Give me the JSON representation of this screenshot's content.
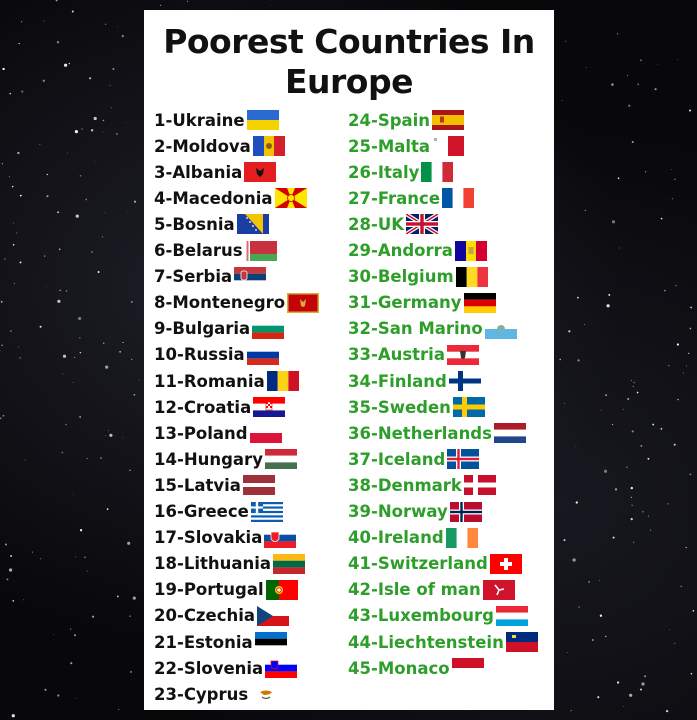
{
  "title": "Poorest Countries In Europe",
  "left_list": [
    {
      "rank": "1-",
      "name": "Ukraine",
      "flag": "ukraine-flag"
    },
    {
      "rank": "2-",
      "name": "Moldova",
      "flag": "moldova-flag"
    },
    {
      "rank": "3-",
      "name": "Albania",
      "flag": "albania-flag"
    },
    {
      "rank": "4-",
      "name": "Macedonia",
      "flag": "macedonia-flag"
    },
    {
      "rank": "5-",
      "name": "Bosnia",
      "flag": "bosnia-flag"
    },
    {
      "rank": "6-",
      "name": "Belarus",
      "flag": "belarus-flag"
    },
    {
      "rank": "7-",
      "name": "Serbia",
      "flag": "serbia-flag"
    },
    {
      "rank": "8-",
      "name": "Montenegro",
      "flag": "montenegro-flag"
    },
    {
      "rank": "9-",
      "name": "Bulgaria",
      "flag": "bulgaria-flag"
    },
    {
      "rank": "10-",
      "name": "Russia",
      "flag": "russia-flag"
    },
    {
      "rank": "11-",
      "name": "Romania",
      "flag": "romania-flag"
    },
    {
      "rank": "12-",
      "name": "Croatia",
      "flag": "croatia-flag"
    },
    {
      "rank": "13-",
      "name": "Poland",
      "flag": "poland-flag"
    },
    {
      "rank": "14-",
      "name": "Hungary",
      "flag": "hungary-flag"
    },
    {
      "rank": "15-",
      "name": "Latvia",
      "flag": "latvia-flag"
    },
    {
      "rank": "16-",
      "name": "Greece",
      "flag": "greece-flag"
    },
    {
      "rank": "17-",
      "name": "Slovakia",
      "flag": "slovakia-flag"
    },
    {
      "rank": "18-",
      "name": "Lithuania",
      "flag": "lithuania-flag"
    },
    {
      "rank": "19-",
      "name": "Portugal",
      "flag": "portugal-flag"
    },
    {
      "rank": "20-",
      "name": "Czechia",
      "flag": "czechia-flag"
    },
    {
      "rank": "21-",
      "name": "Estonia",
      "flag": "estonia-flag"
    },
    {
      "rank": "22-",
      "name": "Slovenia",
      "flag": "slovenia-flag"
    },
    {
      "rank": "23-",
      "name": "Cyprus",
      "flag": "cyprus-flag"
    }
  ],
  "right_list": [
    {
      "rank": "24-",
      "name": "Spain",
      "flag": "spain-flag"
    },
    {
      "rank": "25-",
      "name": "Malta",
      "flag": "malta-flag"
    },
    {
      "rank": "26-",
      "name": "Italy",
      "flag": "italy-flag"
    },
    {
      "rank": "27-",
      "name": "France",
      "flag": "france-flag"
    },
    {
      "rank": "28-",
      "name": "UK",
      "flag": "uk-flag"
    },
    {
      "rank": "29-",
      "name": "Andorra",
      "flag": "andorra-flag"
    },
    {
      "rank": "30-",
      "name": "Belgium",
      "flag": "belgium-flag"
    },
    {
      "rank": "31-",
      "name": "Germany",
      "flag": "germany-flag"
    },
    {
      "rank": "32-",
      "name": "San Marino",
      "flag": "san-marino-flag"
    },
    {
      "rank": "33-",
      "name": "Austria",
      "flag": "austria-flag"
    },
    {
      "rank": "34-",
      "name": "Finland",
      "flag": "finland-flag"
    },
    {
      "rank": "35-",
      "name": "Sweden",
      "flag": "sweden-flag"
    },
    {
      "rank": "36-",
      "name": "Netherlands",
      "flag": "netherlands-flag"
    },
    {
      "rank": "37-",
      "name": "Iceland",
      "flag": "iceland-flag"
    },
    {
      "rank": "38-",
      "name": "Denmark",
      "flag": "denmark-flag"
    },
    {
      "rank": "39-",
      "name": "Norway",
      "flag": "norway-flag"
    },
    {
      "rank": "40-",
      "name": "Ireland",
      "flag": "ireland-flag"
    },
    {
      "rank": "41-",
      "name": "Switzerland",
      "flag": "switzerland-flag"
    },
    {
      "rank": "42-",
      "name": "Isle of man",
      "flag": "isle-of-man-flag"
    },
    {
      "rank": "43-",
      "name": "Luxembourg",
      "flag": "luxembourg-flag"
    },
    {
      "rank": "44-",
      "name": "Liechtenstein",
      "flag": "liechtenstein-flag"
    },
    {
      "rank": "45-",
      "name": "Monaco",
      "flag": "monaco-flag"
    }
  ],
  "colors": {
    "left_text": "#111111",
    "right_text": "#2e9e2a"
  }
}
